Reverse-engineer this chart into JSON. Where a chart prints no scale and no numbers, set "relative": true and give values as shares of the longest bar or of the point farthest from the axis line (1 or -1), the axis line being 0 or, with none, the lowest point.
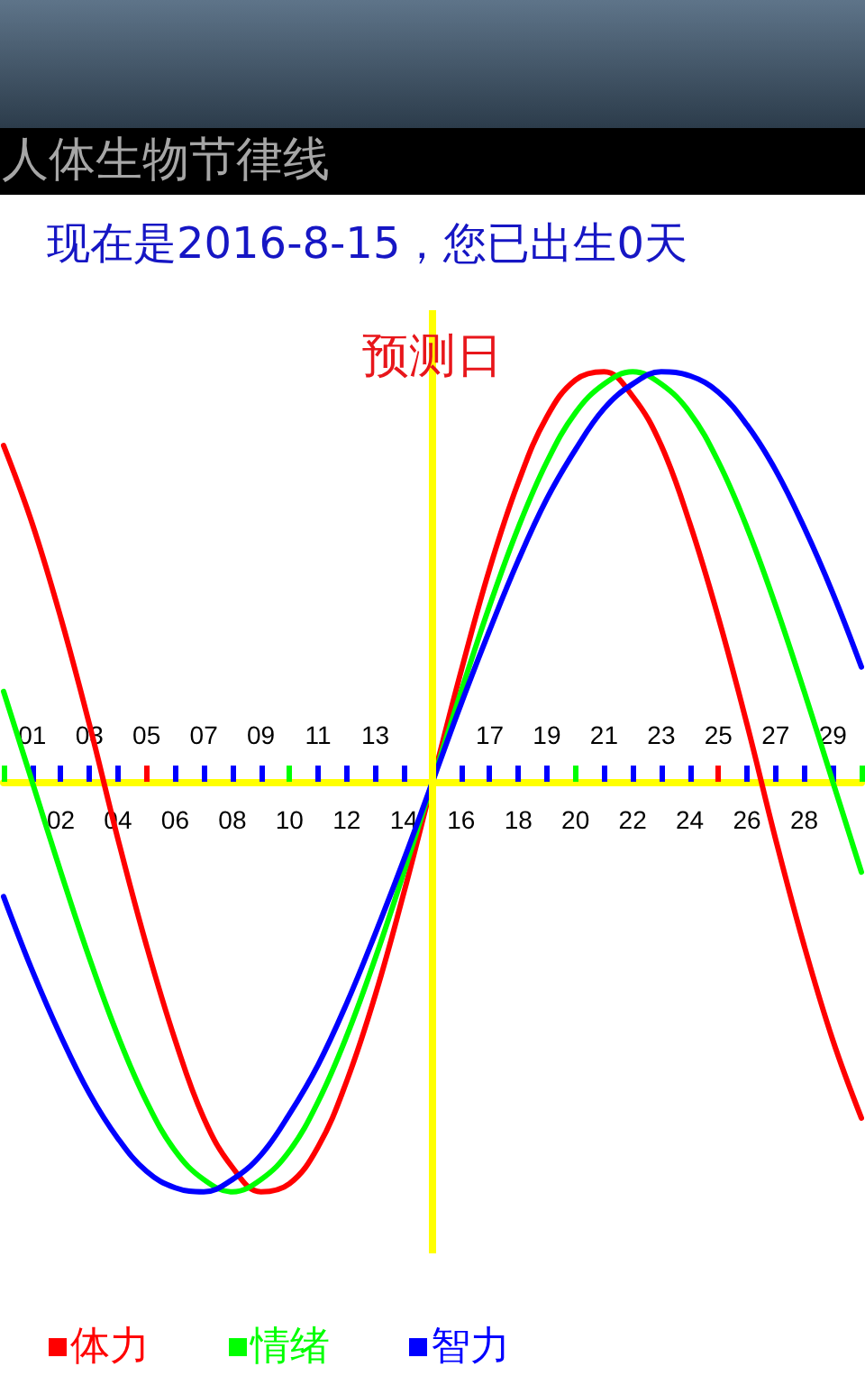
{
  "chart_data": {
    "type": "line",
    "title": "人体生物节律线",
    "subtitle": "现在是2016-8-15，您已出生0天",
    "x": [
      0,
      1,
      2,
      3,
      4,
      5,
      6,
      7,
      8,
      9,
      10,
      11,
      12,
      13,
      14,
      15,
      16,
      17,
      18,
      19,
      20,
      21,
      22,
      23,
      24,
      25,
      26,
      27,
      28,
      29,
      30
    ],
    "xlim": [
      0,
      30
    ],
    "xticks": [
      {
        "value": 0,
        "label": null
      },
      {
        "value": 1,
        "label": null
      },
      {
        "value": 2,
        "label": "02"
      },
      {
        "value": 3,
        "label": null
      },
      {
        "value": 4,
        "label": "04"
      },
      {
        "value": 5,
        "label": null
      },
      {
        "value": 6,
        "label": "06"
      },
      {
        "value": 7,
        "label": null
      },
      {
        "value": 8,
        "label": "08"
      },
      {
        "value": 9,
        "label": null
      },
      10,
      {
        "value": 11,
        "label": null
      },
      12,
      {
        "value": 13,
        "label": null
      },
      14,
      {
        "value": 15,
        "label": null
      },
      16,
      {
        "value": 17,
        "label": null
      },
      18,
      {
        "value": 19,
        "label": null
      },
      20,
      {
        "value": 21,
        "label": null
      },
      22,
      {
        "value": 23,
        "label": null
      },
      24,
      {
        "value": 25,
        "label": null
      },
      26,
      {
        "value": 27,
        "label": null
      },
      28,
      {
        "value": 29,
        "label": null
      },
      {
        "value": 30,
        "label": null
      }
    ],
    "x2lim": [
      0,
      30
    ],
    "x2ticks": [
      {
        "value": 1,
        "label": "01"
      },
      {
        "value": 3,
        "label": "03"
      },
      {
        "value": 5,
        "label": "05"
      },
      {
        "value": 7,
        "label": "07"
      },
      {
        "value": 9,
        "label": "09"
      },
      11,
      13,
      {
        "value": 15,
        "label": null
      },
      17,
      19,
      21,
      23,
      25,
      27,
      29
    ],
    "relative": true,
    "series": [
      {
        "name": "体力",
        "color": "#ff0000",
        "values": [
          0.82,
          0.63,
          0.4,
          0.14,
          -0.14,
          -0.4,
          -0.63,
          -0.82,
          -0.94,
          -1.0,
          -0.98,
          -0.89,
          -0.73,
          -0.52,
          -0.27,
          0,
          0.27,
          0.52,
          0.73,
          0.89,
          0.98,
          1.0,
          0.94,
          0.82,
          0.63,
          0.4,
          0.14,
          -0.14,
          -0.4,
          -0.63,
          -0.82
        ]
      },
      {
        "name": "情绪",
        "color": "#00ff00",
        "values": [
          0.22,
          0,
          -0.22,
          -0.43,
          -0.62,
          -0.78,
          -0.9,
          -0.97,
          -1.0,
          -0.97,
          -0.9,
          -0.78,
          -0.62,
          -0.43,
          -0.22,
          0,
          0.22,
          0.43,
          0.62,
          0.78,
          0.9,
          0.97,
          1.0,
          0.97,
          0.9,
          0.78,
          0.62,
          0.43,
          0.22,
          0,
          -0.22
        ]
      },
      {
        "name": "智力",
        "color": "#0000ff",
        "values": [
          -0.28,
          -0.46,
          -0.62,
          -0.76,
          -0.87,
          -0.95,
          -0.99,
          -1.0,
          -0.97,
          -0.91,
          -0.81,
          -0.69,
          -0.54,
          -0.37,
          -0.19,
          0,
          0.19,
          0.37,
          0.54,
          0.69,
          0.81,
          0.91,
          0.97,
          1.0,
          0.99,
          0.95,
          0.87,
          0.76,
          0.62,
          0.46,
          0.28
        ]
      }
    ],
    "ref_lines": [
      {
        "axis": "x",
        "value": 15,
        "label": "预测日",
        "color": "#ffff00"
      }
    ],
    "legend": "bottom left",
    "marker": "none",
    "line_style": "solid"
  }
}
